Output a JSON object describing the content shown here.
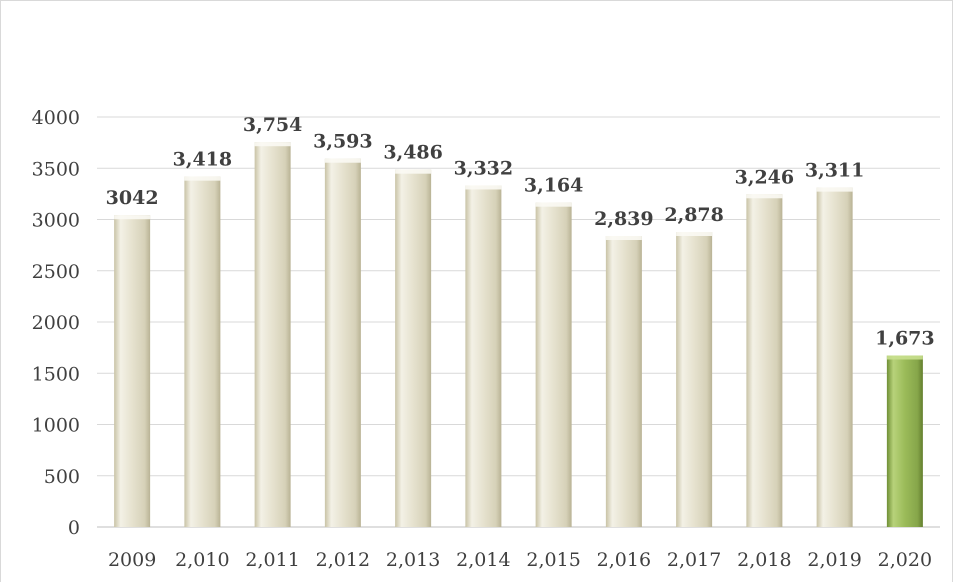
{
  "chart_data": {
    "type": "bar",
    "title": "",
    "xlabel": "",
    "ylabel": "",
    "categories": [
      "2009",
      "2,010",
      "2,011",
      "2,012",
      "2,013",
      "2,014",
      "2,015",
      "2,016",
      "2,017",
      "2,018",
      "2,019",
      "2,020"
    ],
    "values": [
      3042,
      3418,
      3754,
      3593,
      3486,
      3332,
      3164,
      2839,
      2878,
      3246,
      3311,
      1673
    ],
    "data_labels": [
      "3042",
      "3,418",
      "3,754",
      "3,593",
      "3,486",
      "3,332",
      "3,164",
      "2,839",
      "2,878",
      "3,246",
      "3,311",
      "1,673"
    ],
    "ylim": [
      0,
      4000
    ],
    "yticks": [
      0,
      500,
      1000,
      1500,
      2000,
      2500,
      3000,
      3500,
      4000
    ],
    "grid": true,
    "legend": "none",
    "colors": {
      "default_bar": "#ddd9c3",
      "highlight_bar": "#9bbb59",
      "highlight_index": 11,
      "gridline": "#d9d9d9",
      "text": "#404040"
    }
  }
}
